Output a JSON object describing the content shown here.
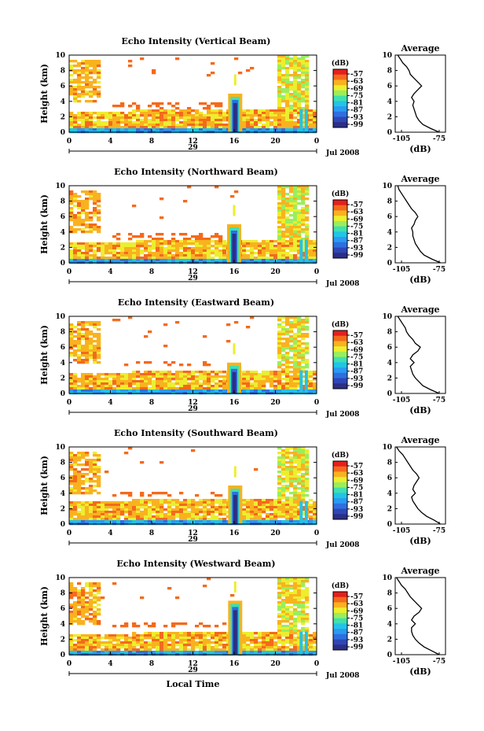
{
  "colors": {
    "scale": [
      "#2b2f86",
      "#2f47b5",
      "#2e6fe0",
      "#2a9af2",
      "#22c4e6",
      "#3fe0b0",
      "#9aee5c",
      "#ecee2e",
      "#f9b21f",
      "#f46a1c",
      "#e51f1c"
    ],
    "axis": "#000000"
  },
  "chart_data": [
    {
      "type": "heatmap",
      "title": "Echo Intensity (Vertical Beam)",
      "ylabel": "Height (km)",
      "ylim": [
        0,
        10
      ],
      "yticks": [
        "0",
        "2",
        "4",
        "6",
        "8",
        "10"
      ],
      "xlim": [
        0,
        24
      ],
      "xticks": [
        "0",
        "4",
        "8",
        "12",
        "16",
        "20",
        "0"
      ],
      "day_label": "29",
      "date_label": "Jul 2008",
      "colorbar": {
        "unit": "(dB)",
        "levels": [
          "-57",
          "-63",
          "-69",
          "-75",
          "-81",
          "-87",
          "-93",
          "-99"
        ]
      },
      "features": {
        "low_layer_top_km": 3.0,
        "mid_layer_km": [
          3.2,
          4.0
        ],
        "convective_cell_hour": 16.1,
        "convective_cell_top_km": 5.0,
        "late_cloud_start_hour": 20.0,
        "late_cloud_top_km": 10
      },
      "profile": {
        "title": "Average",
        "xlabel": "(dB)",
        "xticks": [
          "-105",
          "-75"
        ],
        "xlim": [
          -110,
          -70
        ],
        "ylim": [
          0,
          10
        ],
        "heights_km": [
          0,
          0.5,
          1,
          1.5,
          2,
          2.5,
          3,
          3.5,
          4,
          4.5,
          5,
          5.5,
          6,
          6.5,
          7,
          7.5,
          8,
          8.5,
          9,
          9.5,
          10
        ],
        "values_db": [
          -75,
          -82,
          -88,
          -91,
          -93,
          -94,
          -95,
          -96,
          -95,
          -97,
          -95,
          -92,
          -89,
          -92,
          -95,
          -98,
          -99,
          -101,
          -104,
          -106,
          -108
        ]
      }
    },
    {
      "type": "heatmap",
      "title": "Echo Intensity (Northward Beam)",
      "ylabel": "Height (km)",
      "ylim": [
        0,
        10
      ],
      "yticks": [
        "0",
        "2",
        "4",
        "6",
        "8",
        "10"
      ],
      "xlim": [
        0,
        24
      ],
      "xticks": [
        "0",
        "4",
        "8",
        "12",
        "16",
        "20",
        "0"
      ],
      "day_label": "29",
      "date_label": "Jul 2008",
      "colorbar": {
        "unit": "(dB)",
        "levels": [
          "-57",
          "-63",
          "-69",
          "-75",
          "-81",
          "-87",
          "-93",
          "-99"
        ]
      },
      "features": {
        "low_layer_top_km": 3.0,
        "mid_layer_km": [
          3.2,
          4.0
        ],
        "convective_cell_hour": 16.0,
        "convective_cell_top_km": 5.0,
        "late_cloud_start_hour": 20.0,
        "late_cloud_top_km": 10
      },
      "profile": {
        "title": "Average",
        "xlabel": "(dB)",
        "xticks": [
          "-105",
          "-75"
        ],
        "xlim": [
          -110,
          -70
        ],
        "ylim": [
          0,
          10
        ],
        "heights_km": [
          0,
          0.5,
          1,
          1.5,
          2,
          2.5,
          3,
          3.5,
          4,
          4.5,
          5,
          5.5,
          6,
          6.5,
          7,
          7.5,
          8,
          8.5,
          9,
          9.5,
          10
        ],
        "values_db": [
          -74,
          -81,
          -87,
          -90,
          -92,
          -94,
          -95,
          -96,
          -96,
          -97,
          -95,
          -94,
          -92,
          -94,
          -97,
          -99,
          -101,
          -103,
          -105,
          -107,
          -108
        ]
      }
    },
    {
      "type": "heatmap",
      "title": "Echo Intensity (Eastward Beam)",
      "ylabel": "Height (km)",
      "ylim": [
        0,
        10
      ],
      "yticks": [
        "0",
        "2",
        "4",
        "6",
        "8",
        "10"
      ],
      "xlim": [
        0,
        24
      ],
      "xticks": [
        "0",
        "4",
        "8",
        "12",
        "16",
        "20",
        "0"
      ],
      "day_label": "29",
      "date_label": "Jul 2008",
      "colorbar": {
        "unit": "(dB)",
        "levels": [
          "-57",
          "-63",
          "-69",
          "-75",
          "-81",
          "-87",
          "-93",
          "-99"
        ]
      },
      "features": {
        "low_layer_top_km": 3.2,
        "mid_layer_km": [
          3.6,
          4.4
        ],
        "convective_cell_hour": 16.0,
        "convective_cell_top_km": 4.0,
        "late_cloud_start_hour": 20.0,
        "late_cloud_top_km": 10
      },
      "profile": {
        "title": "Average",
        "xlabel": "(dB)",
        "xticks": [
          "-105",
          "-75"
        ],
        "xlim": [
          -110,
          -70
        ],
        "ylim": [
          0,
          10
        ],
        "heights_km": [
          0,
          0.5,
          1,
          1.5,
          2,
          2.5,
          3,
          3.5,
          4,
          4.5,
          5,
          5.5,
          6,
          6.5,
          7,
          7.5,
          8,
          8.5,
          9,
          9.5,
          10
        ],
        "values_db": [
          -75,
          -82,
          -88,
          -91,
          -94,
          -96,
          -97,
          -98,
          -95,
          -98,
          -96,
          -92,
          -90,
          -94,
          -96,
          -99,
          -101,
          -102,
          -104,
          -106,
          -108
        ]
      }
    },
    {
      "type": "heatmap",
      "title": "Echo Intensity (Southward Beam)",
      "ylabel": "Height (km)",
      "ylim": [
        0,
        10
      ],
      "yticks": [
        "0",
        "2",
        "4",
        "6",
        "8",
        "10"
      ],
      "xlim": [
        0,
        24
      ],
      "xticks": [
        "0",
        "4",
        "8",
        "12",
        "16",
        "20",
        "0"
      ],
      "day_label": "29",
      "date_label": "Jul 2008",
      "colorbar": {
        "unit": "(dB)",
        "levels": [
          "-57",
          "-63",
          "-69",
          "-75",
          "-81",
          "-87",
          "-93",
          "-99"
        ]
      },
      "features": {
        "low_layer_top_km": 3.4,
        "mid_layer_km": [
          3.6,
          4.2
        ],
        "convective_cell_hour": 16.1,
        "convective_cell_top_km": 5.0,
        "late_cloud_start_hour": 20.0,
        "late_cloud_top_km": 10
      },
      "profile": {
        "title": "Average",
        "xlabel": "(dB)",
        "xticks": [
          "-105",
          "-75"
        ],
        "xlim": [
          -110,
          -70
        ],
        "ylim": [
          0,
          10
        ],
        "heights_km": [
          0,
          0.5,
          1,
          1.5,
          2,
          2.5,
          3,
          3.5,
          4,
          4.5,
          5,
          5.5,
          6,
          6.5,
          7,
          7.5,
          8,
          8.5,
          9,
          9.5,
          10
        ],
        "values_db": [
          -74,
          -79,
          -85,
          -89,
          -92,
          -94,
          -96,
          -97,
          -94,
          -96,
          -95,
          -93,
          -91,
          -93,
          -96,
          -98,
          -100,
          -102,
          -104,
          -107,
          -109
        ]
      }
    },
    {
      "type": "heatmap",
      "title": "Echo Intensity (Westward Beam)",
      "ylabel": "Height (km)",
      "xlabel": "Local Time",
      "ylim": [
        0,
        10
      ],
      "yticks": [
        "0",
        "2",
        "4",
        "6",
        "8",
        "10"
      ],
      "xlim": [
        0,
        24
      ],
      "xticks": [
        "0",
        "4",
        "8",
        "12",
        "16",
        "20",
        "0"
      ],
      "day_label": "29",
      "date_label": "Jul 2008",
      "colorbar": {
        "unit": "(dB)",
        "levels": [
          "-57",
          "-63",
          "-69",
          "-75",
          "-81",
          "-87",
          "-93",
          "-99"
        ]
      },
      "features": {
        "low_layer_top_km": 3.0,
        "mid_layer_km": [
          3.6,
          4.4
        ],
        "convective_cell_hour": 16.1,
        "convective_cell_top_km": 7.0,
        "late_cloud_start_hour": 20.0,
        "late_cloud_top_km": 10
      },
      "profile": {
        "title": "Average",
        "xlabel": "(dB)",
        "xticks": [
          "-105",
          "-75"
        ],
        "xlim": [
          -110,
          -70
        ],
        "ylim": [
          0,
          10
        ],
        "heights_km": [
          0,
          0.5,
          1,
          1.5,
          2,
          2.5,
          3,
          3.5,
          4,
          4.5,
          5,
          5.5,
          6,
          6.5,
          7,
          7.5,
          8,
          8.5,
          9,
          9.5,
          10
        ],
        "values_db": [
          -75,
          -81,
          -87,
          -91,
          -94,
          -96,
          -97,
          -97,
          -94,
          -97,
          -95,
          -91,
          -89,
          -92,
          -95,
          -98,
          -100,
          -102,
          -105,
          -107,
          -109
        ]
      }
    }
  ]
}
